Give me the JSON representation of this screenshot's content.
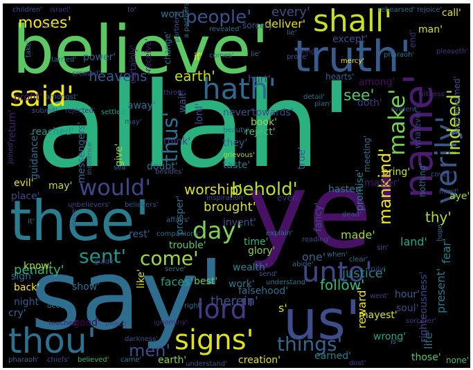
{
  "image": {
    "type": "word_cloud",
    "background": "#000000",
    "colormap": "viridis"
  },
  "words": [
    {
      "text": "allah'",
      "color": "#2bb07f"
    },
    {
      "text": "ye'",
      "color": "#471164"
    },
    {
      "text": "say'",
      "color": "#2e6d8e"
    },
    {
      "text": "believe'",
      "color": "#5cc863"
    },
    {
      "text": "thee'",
      "color": "#297b8e"
    },
    {
      "text": "us'",
      "color": "#3e4c8a"
    },
    {
      "text": "truth'",
      "color": "#365c8d"
    },
    {
      "text": "name'",
      "color": "#481c6e"
    },
    {
      "text": "thou'",
      "color": "#2c728e"
    },
    {
      "text": "shall'",
      "color": "#c8e020"
    },
    {
      "text": "hath'",
      "color": "#31688e"
    },
    {
      "text": "said'",
      "color": "#f1e51d"
    },
    {
      "text": "verily'",
      "color": "#38588c"
    },
    {
      "text": "unto'",
      "color": "#3f4788"
    },
    {
      "text": "lord'",
      "color": "#443a83"
    },
    {
      "text": "signs'",
      "color": "#dde318"
    },
    {
      "text": "would'",
      "color": "#404688"
    },
    {
      "text": "day'",
      "color": "#7fd34e"
    },
    {
      "text": "sent'",
      "color": "#1f948c"
    },
    {
      "text": "come'",
      "color": "#a0da39"
    },
    {
      "text": "people'",
      "color": "#3b528b"
    },
    {
      "text": "make'",
      "color": "#74d055"
    },
    {
      "text": "behold'",
      "color": "#b5de2b"
    },
    {
      "text": "things'",
      "color": "#31688e"
    },
    {
      "text": "thus'",
      "color": "#2d708e"
    },
    {
      "text": "indeed'",
      "color": "#b8de29"
    },
    {
      "text": "mankind'",
      "color": "#efe51c"
    },
    {
      "text": "men'",
      "color": "#3d4e8a"
    },
    {
      "text": "worship'",
      "color": "#d8e219"
    },
    {
      "text": "see'",
      "color": "#52c569"
    },
    {
      "text": "heavens'",
      "color": "#39568c"
    },
    {
      "text": "earth'",
      "color": "#c2df23"
    },
    {
      "text": "deliver'",
      "color": "#e2e418"
    },
    {
      "text": "every'",
      "color": "#3c508b"
    },
    {
      "text": "moses'",
      "color": "#f1e51d"
    },
    {
      "text": "brought'",
      "color": "#dae319"
    },
    {
      "text": "thy'",
      "color": "#b0dd2f"
    },
    {
      "text": "therein'",
      "color": "#39558c"
    },
    {
      "text": "penalty'",
      "color": "#32b67a"
    },
    {
      "text": "follow'",
      "color": "#35b779"
    },
    {
      "text": "justice'",
      "color": "#25848e"
    },
    {
      "text": "reward'",
      "color": "#efe51c"
    },
    {
      "text": "life'",
      "color": "#2c718e"
    },
    {
      "text": "present'",
      "color": "#297a8e"
    },
    {
      "text": "fear'",
      "color": "#25838e"
    },
    {
      "text": "show'",
      "color": "#2e6e8e"
    },
    {
      "text": "back'",
      "color": "#fde725"
    },
    {
      "text": "night'",
      "color": "#39568c"
    },
    {
      "text": "cry'",
      "color": "#31688e"
    },
    {
      "text": "good'",
      "color": "#440154"
    },
    {
      "text": "faces'",
      "color": "#1fa188"
    },
    {
      "text": "trouble'",
      "color": "#5ec962"
    },
    {
      "text": "glory'",
      "color": "#90d743"
    },
    {
      "text": "wealth'",
      "color": "#25858e"
    },
    {
      "text": "work'",
      "color": "#2a778e"
    },
    {
      "text": "falsehood'",
      "color": "#2c718e"
    },
    {
      "text": "best'",
      "color": "#63cb5f"
    },
    {
      "text": "hour'",
      "color": "#34608d"
    },
    {
      "text": "soul'",
      "color": "#3e4989"
    },
    {
      "text": "righteousness'",
      "color": "#3f4889"
    },
    {
      "text": "wrong'",
      "color": "#22a884"
    },
    {
      "text": "those'",
      "color": "#5ac864"
    },
    {
      "text": "earned'",
      "color": "#27808e"
    },
    {
      "text": "creation'",
      "color": "#dde318"
    },
    {
      "text": "earth'",
      "color": "#8bd646"
    },
    {
      "text": "none'",
      "color": "#42be71"
    },
    {
      "text": "one'",
      "color": "#31678e"
    },
    {
      "text": "made'",
      "color": "#9dd93b"
    },
    {
      "text": "land'",
      "color": "#22a884"
    },
    {
      "text": "time'",
      "color": "#31b57b"
    },
    {
      "text": "rest'",
      "color": "#35608d"
    },
    {
      "text": "prosper'",
      "color": "#2c728e"
    },
    {
      "text": "invent'",
      "color": "#3a538b"
    },
    {
      "text": "fancy'",
      "color": "#3c4f8a"
    },
    {
      "text": "promise'",
      "color": "#277f8e"
    },
    {
      "text": "bring'",
      "color": "#c8e020"
    },
    {
      "text": "matter'",
      "color": "#48186a"
    },
    {
      "text": "hasten'",
      "color": "#2a778e"
    },
    {
      "text": "even'",
      "color": "#472d7b"
    },
    {
      "text": "aye'",
      "color": "#a2da37"
    },
    {
      "text": "may'",
      "color": "#bddf26"
    },
    {
      "text": "evil'",
      "color": "#e7e419"
    },
    {
      "text": "place'",
      "color": "#3e4a89"
    },
    {
      "text": "guidance'",
      "color": "#2e6e8e"
    },
    {
      "text": "reached'",
      "color": "#20928c"
    },
    {
      "text": "return'",
      "color": "#481f70"
    },
    {
      "text": "messengers'",
      "color": "#31688e"
    },
    {
      "text": "give'",
      "color": "#a5db36"
    },
    {
      "text": "think'",
      "color": "#453882"
    },
    {
      "text": "doubt'",
      "color": "#2d708e"
    },
    {
      "text": "taste'",
      "color": "#287c8e"
    },
    {
      "text": "they'",
      "color": "#32648e"
    },
    {
      "text": "reject'",
      "color": "#44bf70"
    },
    {
      "text": "book'",
      "color": "#90d743"
    },
    {
      "text": "never'",
      "color": "#3b528b"
    },
    {
      "text": "towards'",
      "color": "#3e4989"
    },
    {
      "text": "true'",
      "color": "#38598c"
    },
    {
      "text": "meeting'",
      "color": "#2c728e"
    },
    {
      "text": "nothing'",
      "color": "#31678e"
    },
    {
      "text": "whatever'",
      "color": "#424086"
    },
    {
      "text": "overwhelmed'",
      "color": "#3b528b"
    },
    {
      "text": "doth'",
      "color": "#453781"
    },
    {
      "text": "among'",
      "color": "#470d60"
    },
    {
      "text": "hearts'",
      "color": "#34608d"
    },
    {
      "text": "hurt'",
      "color": "#3e4c8a"
    },
    {
      "text": "except'",
      "color": "#3f4889"
    },
    {
      "text": "profit'",
      "color": "#481b6d"
    },
    {
      "text": "away'",
      "color": "#2b748e"
    },
    {
      "text": "wait'",
      "color": "#38588c"
    },
    {
      "text": "lord'",
      "color": "#3b528b"
    },
    {
      "text": "power'",
      "color": "#31688e"
    },
    {
      "text": "certainly'",
      "color": "#482677"
    },
    {
      "text": "receive'",
      "color": "#481a6c"
    },
    {
      "text": "change'",
      "color": "#2b758e"
    },
    {
      "text": "if'",
      "color": "#fde725"
    },
    {
      "text": "word'",
      "color": "#2c728e"
    },
    {
      "text": "sorcery'",
      "color": "#3a548c"
    },
    {
      "text": "man'",
      "color": "#dae319"
    },
    {
      "text": "end'",
      "color": "#472e7c"
    },
    {
      "text": "call'",
      "color": "#e5e419"
    },
    {
      "text": "partners'",
      "color": "#38588c"
    },
    {
      "text": "know'",
      "color": "#a8db34"
    },
    {
      "text": "sign'",
      "color": "#31688e"
    },
    {
      "text": "like'",
      "color": "#dae319"
    },
    {
      "text": "deeds'",
      "color": "#2a788e"
    },
    {
      "text": "touched'",
      "color": "#482374"
    },
    {
      "text": "peace'",
      "color": "#3f4788"
    },
    {
      "text": "ignominy'",
      "color": "#481f70"
    },
    {
      "text": "darkness'",
      "color": "#3b518b"
    },
    {
      "text": "pharaoh'",
      "color": "#31678e"
    },
    {
      "text": "chiefs'",
      "color": "#3e4a89"
    },
    {
      "text": "believed'",
      "color": "#35b779"
    },
    {
      "text": "came'",
      "color": "#287d8e"
    },
    {
      "text": "understand'",
      "color": "#39568c"
    },
    {
      "text": "dost'",
      "color": "#443b84"
    },
    {
      "text": "children'",
      "color": "#3b528b"
    },
    {
      "text": "israel'",
      "color": "#46327e"
    },
    {
      "text": "to'",
      "color": "#3b528b"
    },
    {
      "text": "rehearsed'",
      "color": "#2c728e"
    },
    {
      "text": "rejoice'",
      "color": "#31688e"
    },
    {
      "text": "revealed'",
      "color": "#2c728e"
    },
    {
      "text": "living'",
      "color": "#482878"
    },
    {
      "text": "pleaseth'",
      "color": "#463480"
    },
    {
      "text": "pharaoh'",
      "color": "#2c728e"
    },
    {
      "text": "mercy'",
      "color": "#fde725"
    },
    {
      "text": "prove'",
      "color": "#3b528b"
    },
    {
      "text": "lie'",
      "color": "#2c728e"
    },
    {
      "text": "comes'",
      "color": "#31688e"
    },
    {
      "text": "tarried'",
      "color": "#2c728e"
    },
    {
      "text": "created'",
      "color": "#3e4989"
    },
    {
      "text": "amongst'",
      "color": "#31688e"
    },
    {
      "text": "throw'",
      "color": "#443983"
    },
    {
      "text": "submit'",
      "color": "#3b528b"
    },
    {
      "text": "rejected'",
      "color": "#472d7b"
    },
    {
      "text": "settled'",
      "color": "#1f9e89"
    },
    {
      "text": "may'",
      "color": "#3e4c8a"
    },
    {
      "text": "plan'",
      "color": "#31688e"
    },
    {
      "text": "detail'",
      "color": "#2c728e"
    },
    {
      "text": "witness'",
      "color": "#482677"
    },
    {
      "text": "evident'",
      "color": "#3e4989"
    },
    {
      "text": "beauty'",
      "color": "#2c728e"
    },
    {
      "text": "grievous'",
      "color": "#a8db34"
    },
    {
      "text": "insolence'",
      "color": "#31688e"
    },
    {
      "text": "sea'",
      "color": "#31688e"
    },
    {
      "text": "besides'",
      "color": "#3b528b"
    },
    {
      "text": "joined'",
      "color": "#46327e"
    },
    {
      "text": "unbelievers'",
      "color": "#3f4788"
    },
    {
      "text": "believers'",
      "color": "#3b528b"
    },
    {
      "text": "inspiration'",
      "color": "#3e4989"
    },
    {
      "text": "affairs'",
      "color": "#31688e"
    },
    {
      "text": "companions'",
      "color": "#31688e"
    },
    {
      "text": "explain'",
      "color": "#2c728e"
    },
    {
      "text": "reading'",
      "color": "#3e4c8a"
    },
    {
      "text": "sin'",
      "color": "#3b528b"
    },
    {
      "text": "hope'",
      "color": "#31688e"
    },
    {
      "text": "dead'",
      "color": "#3b528b"
    },
    {
      "text": "serve'",
      "color": "#2c728e"
    },
    {
      "text": "guide'",
      "color": "#3e4989"
    },
    {
      "text": "abide'",
      "color": "#31688e"
    },
    {
      "text": "clear'",
      "color": "#2c728e"
    },
    {
      "text": "send'",
      "color": "#3b528b"
    },
    {
      "text": "understand'",
      "color": "#2c728e"
    },
    {
      "text": "truly'",
      "color": "#3e4989"
    },
    {
      "text": "went'",
      "color": "#443983"
    },
    {
      "text": "mayest'",
      "color": "#dde318"
    },
    {
      "text": "sorcerer'",
      "color": "#46327e"
    },
    {
      "text": "is'",
      "color": "#2c728e"
    },
    {
      "text": "right'",
      "color": "#31688e"
    },
    {
      "text": "it'",
      "color": "#2c728e"
    },
    {
      "text": "leave'",
      "color": "#3b528b"
    },
    {
      "text": "fain'",
      "color": "#3e4989"
    },
    {
      "text": "take'",
      "color": "#31688e"
    },
    {
      "text": "a partners'",
      "color": "#2c728e"
    },
    {
      "text": "cover'",
      "color": "#3e4989"
    },
    {
      "text": "mind'",
      "color": "#3b528b"
    },
    {
      "text": "lie'",
      "color": "#31688e"
    },
    {
      "text": "when'",
      "color": "#2c728e"
    },
    {
      "text": "s'",
      "color": "#dde318"
    }
  ]
}
